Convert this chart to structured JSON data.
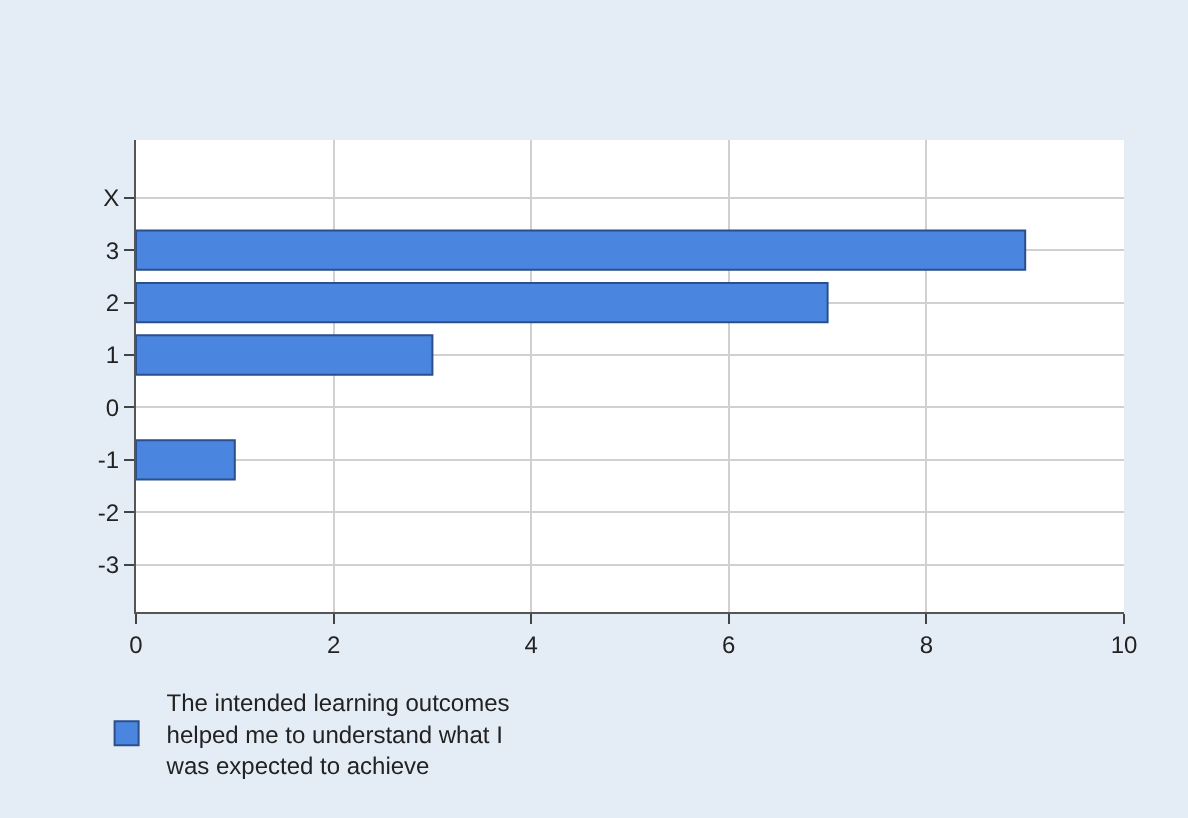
{
  "chart_data": {
    "type": "bar",
    "orientation": "horizontal",
    "categories": [
      "X",
      "3",
      "2",
      "1",
      "0",
      "-1",
      "-2",
      "-3"
    ],
    "series": [
      {
        "name": "The intended learning outcomes helped me to understand what I was expected to achieve",
        "color": "#4a86e0",
        "values": [
          null,
          9,
          7,
          3,
          null,
          1,
          null,
          null
        ]
      }
    ],
    "xlim": [
      0,
      10
    ],
    "xticks": [
      0,
      2,
      4,
      6,
      8,
      10
    ],
    "grid": true,
    "legend": "bottom"
  }
}
